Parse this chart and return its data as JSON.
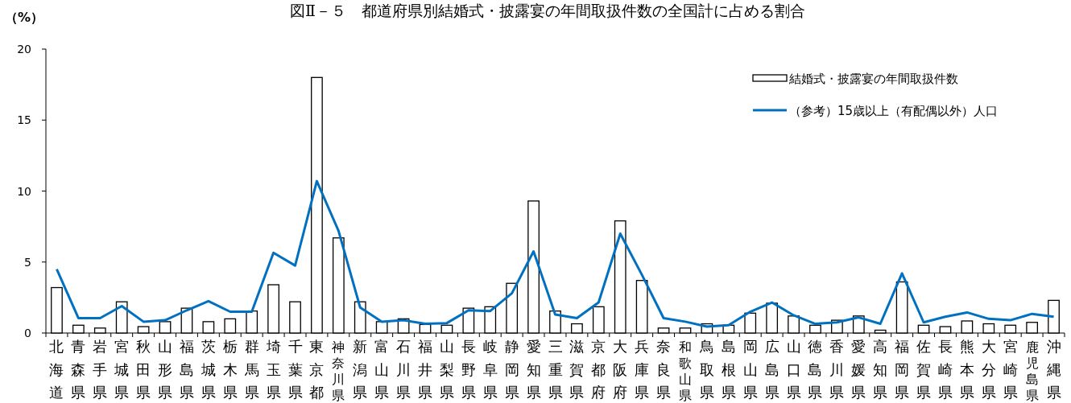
{
  "chart_data": {
    "type": "bar",
    "title": "図Ⅱ－５　都道府県別結婚式・披露宴の年間取扱件数の全国計に占める割合",
    "ylabel": "（%）",
    "categories": [
      "北海道",
      "青森県",
      "岩手県",
      "宮城県",
      "秋田県",
      "山形県",
      "福島県",
      "茨城県",
      "栃木県",
      "群馬県",
      "埼玉県",
      "千葉県",
      "東京都",
      "神奈川県",
      "新潟県",
      "富山県",
      "石川県",
      "福井県",
      "山梨県",
      "長野県",
      "岐阜県",
      "静岡県",
      "愛知県",
      "三重県",
      "滋賀県",
      "京都府",
      "大阪府",
      "兵庫県",
      "奈良県",
      "和歌山県",
      "鳥取県",
      "島根県",
      "岡山県",
      "広島県",
      "山口県",
      "徳島県",
      "香川県",
      "愛媛県",
      "高知県",
      "福岡県",
      "佐賀県",
      "長崎県",
      "熊本県",
      "大分県",
      "宮崎県",
      "鹿児島県",
      "沖縄県"
    ],
    "series": [
      {
        "name": "結婚式・披露宴の年間取扱件数",
        "color": "#ffffff",
        "values": [
          3.2,
          0.55,
          0.35,
          2.2,
          0.45,
          0.8,
          1.75,
          0.8,
          1.0,
          1.55,
          3.4,
          2.2,
          18.0,
          6.7,
          2.2,
          0.8,
          1.0,
          0.6,
          0.55,
          1.75,
          1.85,
          3.5,
          9.3,
          1.55,
          0.65,
          1.85,
          7.9,
          3.7,
          0.35,
          0.35,
          0.65,
          0.55,
          1.4,
          2.1,
          1.2,
          0.55,
          0.9,
          1.2,
          0.2,
          3.6,
          0.55,
          0.45,
          0.85,
          0.65,
          0.55,
          0.75,
          2.3
        ]
      },
      {
        "name": "（参考）15歳以上（有配偶以外）人口",
        "type": "line",
        "color": "#0070c0",
        "values": [
          4.5,
          1.05,
          1.05,
          1.9,
          0.8,
          0.9,
          1.6,
          2.25,
          1.5,
          1.5,
          5.65,
          4.75,
          10.7,
          7.2,
          1.8,
          0.8,
          0.9,
          0.65,
          0.7,
          1.6,
          1.55,
          2.8,
          5.75,
          1.3,
          1.05,
          2.15,
          7.0,
          4.1,
          1.05,
          0.8,
          0.45,
          0.55,
          1.5,
          2.15,
          1.25,
          0.65,
          0.75,
          1.1,
          0.65,
          4.2,
          0.75,
          1.15,
          1.45,
          1.0,
          0.9,
          1.35,
          1.15
        ]
      }
    ],
    "ylim": [
      0,
      20
    ],
    "yticks": [
      0,
      5,
      10,
      15,
      20
    ],
    "legend": "top right"
  }
}
